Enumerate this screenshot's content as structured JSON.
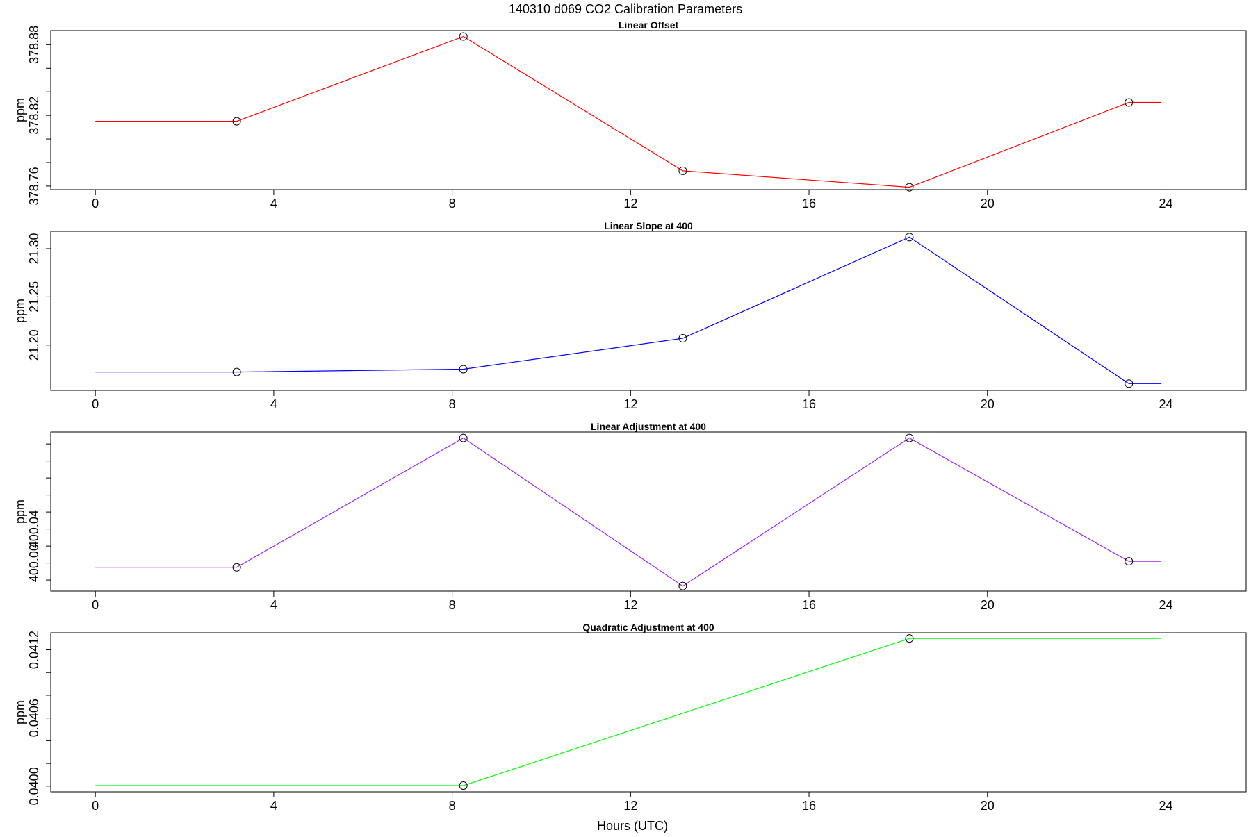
{
  "figure": {
    "title": "140310   d069   CO2 Calibration Parameters",
    "xlabel": "Hours (UTC)"
  },
  "chart_data": [
    {
      "type": "line",
      "title": "Linear Offset",
      "ylabel": "ppm",
      "xlim": [
        -1.0,
        25.8
      ],
      "ylim": [
        378.757,
        378.892
      ],
      "x_ticks": [
        0,
        4,
        8,
        12,
        16,
        20,
        24
      ],
      "x_tick_labels": [
        "0",
        "4",
        "8",
        "12",
        "16",
        "20",
        "24"
      ],
      "y_ticks": [
        378.76,
        378.82,
        378.88
      ],
      "y_tick_labels": [
        "378.76",
        "378.82",
        "378.88"
      ],
      "y_minor_ticks": [
        378.76,
        378.78,
        378.8,
        378.82,
        378.84,
        378.86,
        378.88
      ],
      "color": "#ff0000",
      "series": [
        {
          "x": [
            0,
            3.17,
            8.25,
            13.17,
            18.25,
            23.17,
            23.9
          ],
          "y": [
            378.815,
            378.815,
            378.887,
            378.773,
            378.759,
            378.831,
            378.831
          ],
          "markers": [
            false,
            true,
            true,
            true,
            true,
            true,
            false
          ]
        }
      ]
    },
    {
      "type": "line",
      "title": "Linear Slope at 400",
      "ylabel": "ppm",
      "xlim": [
        -1.0,
        25.8
      ],
      "ylim": [
        21.153,
        21.318
      ],
      "x_ticks": [
        0,
        4,
        8,
        12,
        16,
        20,
        24
      ],
      "x_tick_labels": [
        "0",
        "4",
        "8",
        "12",
        "16",
        "20",
        "24"
      ],
      "y_ticks": [
        21.2,
        21.25,
        21.3
      ],
      "y_tick_labels": [
        "21.20",
        "21.25",
        "21.30"
      ],
      "y_minor_ticks": [
        21.2,
        21.25,
        21.3
      ],
      "color": "#0000ff",
      "series": [
        {
          "x": [
            0,
            3.17,
            8.25,
            13.17,
            18.25,
            23.17,
            23.9
          ],
          "y": [
            21.172,
            21.172,
            21.175,
            21.207,
            21.312,
            21.16,
            21.16
          ],
          "markers": [
            false,
            true,
            true,
            true,
            true,
            true,
            false
          ]
        }
      ]
    },
    {
      "type": "line",
      "title": "Linear Adjustment at 400",
      "ylabel": "ppm",
      "xlim": [
        -1.0,
        25.8
      ],
      "ylim": [
        399.967,
        400.154
      ],
      "x_ticks": [
        0,
        4,
        8,
        12,
        16,
        20,
        24
      ],
      "x_tick_labels": [
        "0",
        "4",
        "8",
        "12",
        "16",
        "20",
        "24"
      ],
      "y_ticks": [
        400.0,
        400.04
      ],
      "y_tick_labels": [
        "400.00",
        "400.04"
      ],
      "y_minor_ticks": [
        399.98,
        400.0,
        400.02,
        400.04,
        400.06,
        400.08,
        400.1,
        400.12,
        400.14
      ],
      "color": "#a020f0",
      "series": [
        {
          "x": [
            0,
            3.17,
            8.25,
            13.17,
            18.25,
            23.17,
            23.9
          ],
          "y": [
            399.995,
            399.995,
            400.147,
            399.973,
            400.147,
            400.002,
            400.002
          ],
          "markers": [
            false,
            true,
            true,
            true,
            true,
            true,
            false
          ]
        }
      ]
    },
    {
      "type": "line",
      "title": "Quadratic Adjustment at 400",
      "ylabel": "ppm",
      "xlim": [
        -1.0,
        25.8
      ],
      "ylim": [
        0.03995,
        0.04135
      ],
      "x_ticks": [
        0,
        4,
        8,
        12,
        16,
        20,
        24
      ],
      "x_tick_labels": [
        "0",
        "4",
        "8",
        "12",
        "16",
        "20",
        "24"
      ],
      "y_ticks": [
        0.04,
        0.0406,
        0.0412
      ],
      "y_tick_labels": [
        "0.0400",
        "0.0406",
        "0.0412"
      ],
      "y_minor_ticks": [
        0.04,
        0.0402,
        0.0404,
        0.0406,
        0.0408,
        0.041,
        0.0412
      ],
      "color": "#00ff00",
      "series": [
        {
          "x": [
            0,
            8.25,
            18.25,
            23.9
          ],
          "y": [
            0.040005,
            0.040005,
            0.0413,
            0.0413
          ],
          "markers": [
            false,
            true,
            true,
            false
          ]
        }
      ]
    }
  ]
}
